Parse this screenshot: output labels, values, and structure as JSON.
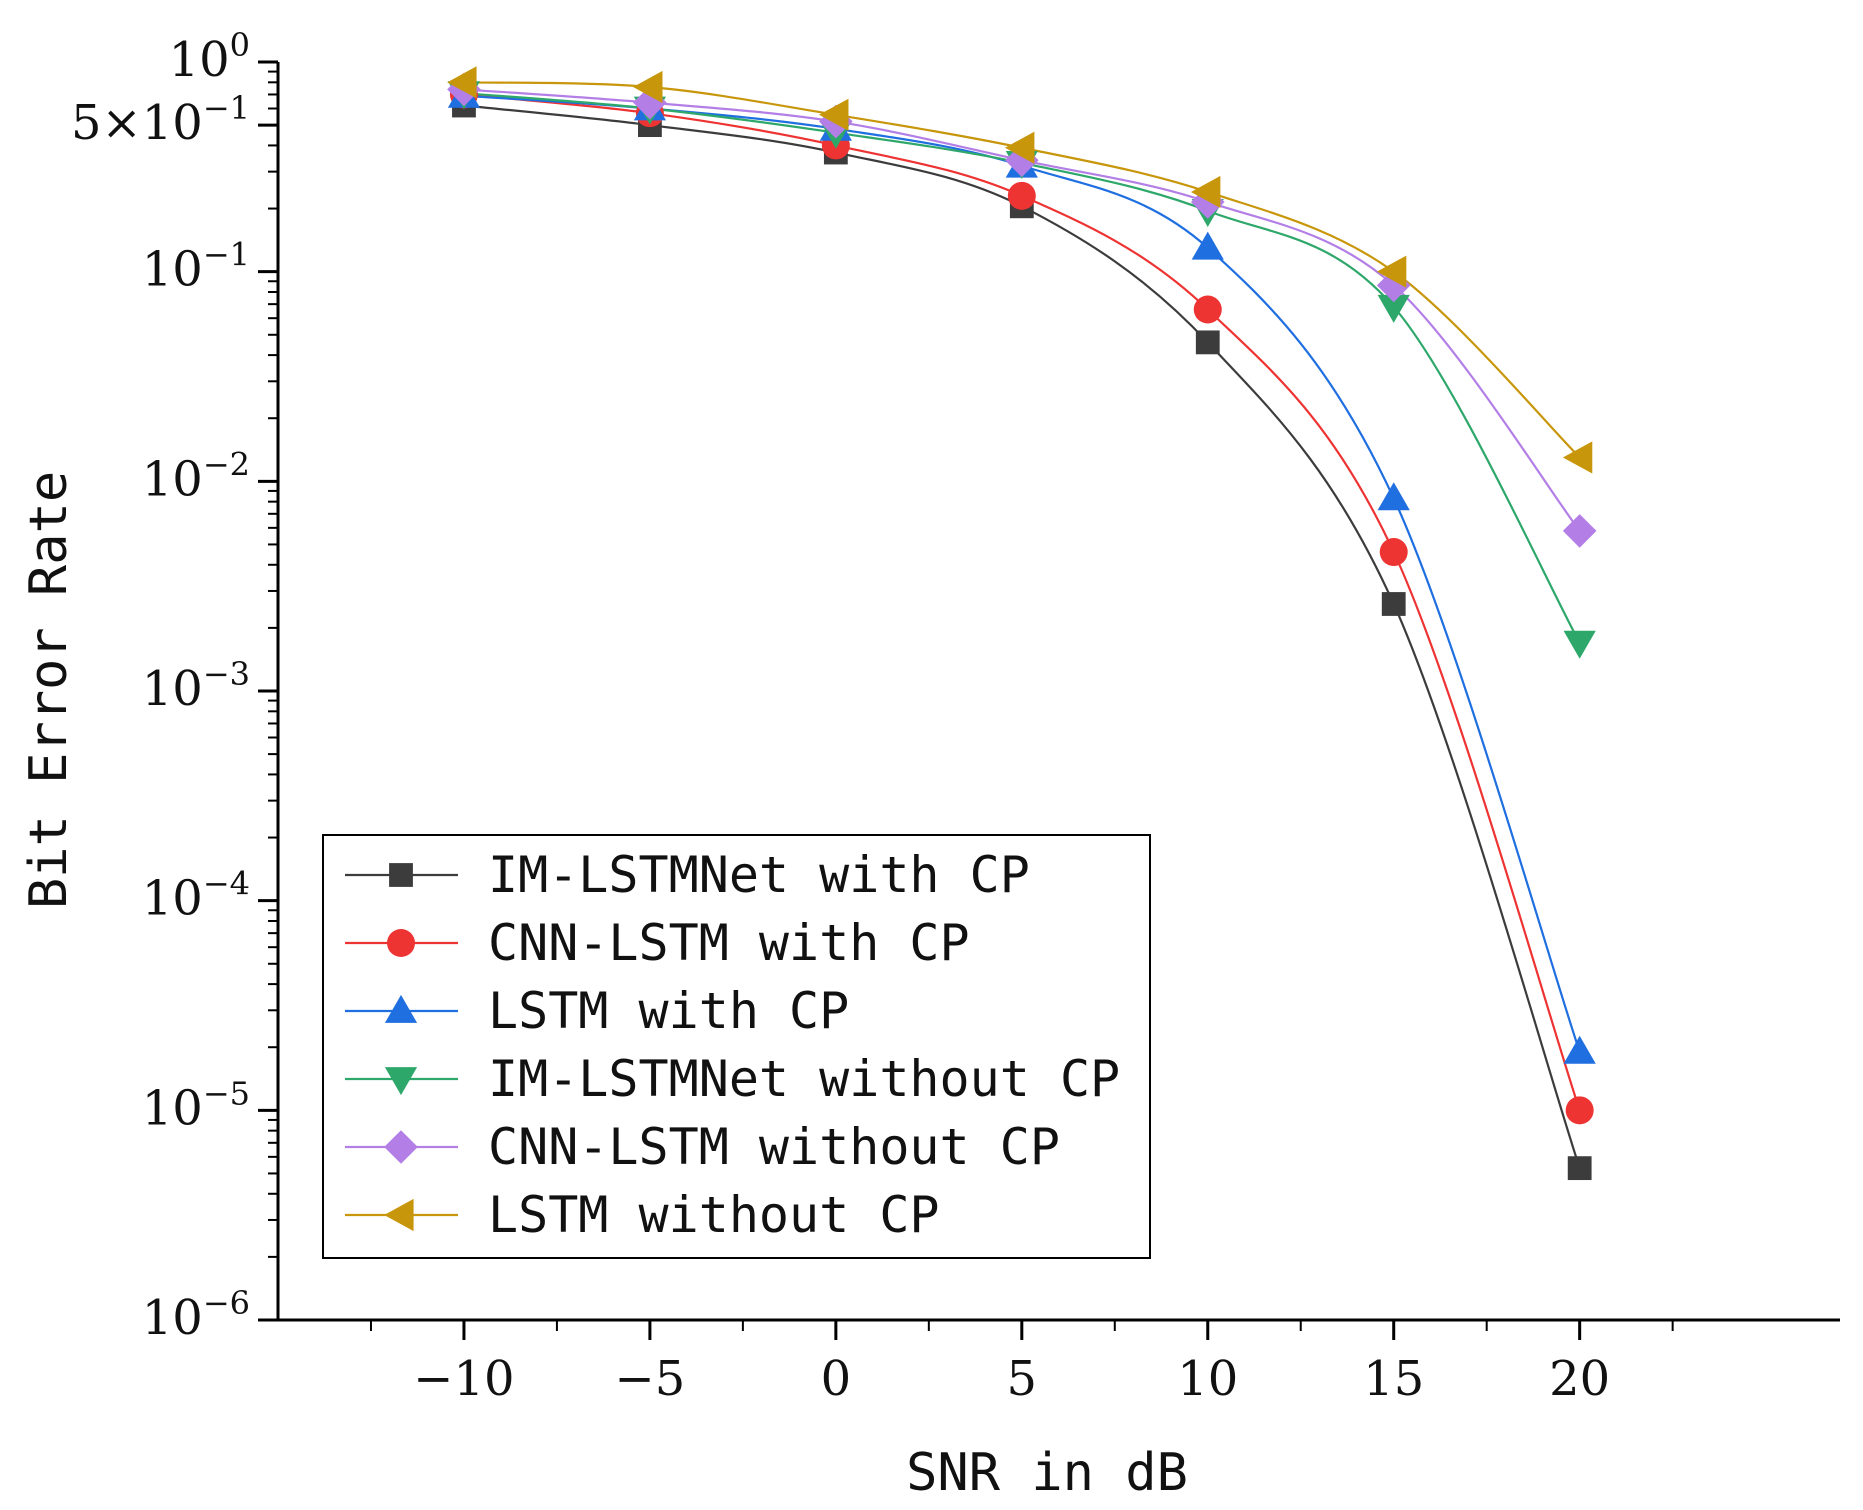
{
  "chart_data": {
    "type": "line",
    "title": "",
    "xlabel": "SNR in dB",
    "ylabel": "Bit Error Rate",
    "yscale": "log",
    "xlim": [
      -15,
      27
    ],
    "ylim": [
      1e-06,
      1
    ],
    "x_ticks": [
      -10,
      -5,
      0,
      5,
      10,
      15,
      20
    ],
    "x_tick_labels": [
      "−10",
      "−5",
      "0",
      "5",
      "10",
      "15",
      "20"
    ],
    "y_ticks": [
      {
        "value": 1,
        "base": "10",
        "exp": "0"
      },
      {
        "value": 0.5,
        "base": "5×10",
        "exp": "−1"
      },
      {
        "value": 0.1,
        "base": "10",
        "exp": "−1"
      },
      {
        "value": 0.01,
        "base": "10",
        "exp": "−2"
      },
      {
        "value": 0.001,
        "base": "10",
        "exp": "−3"
      },
      {
        "value": 0.0001,
        "base": "10",
        "exp": "−4"
      },
      {
        "value": 1e-05,
        "base": "10",
        "exp": "−5"
      },
      {
        "value": 1e-06,
        "base": "10",
        "exp": "−6"
      }
    ],
    "x": [
      -10,
      -5,
      0,
      5,
      10,
      15,
      20
    ],
    "legend_position": "bottom-left",
    "series": [
      {
        "name": "IM-LSTMNet with CP",
        "color": "#3c3c3c",
        "marker": "square",
        "values": [
          0.62,
          0.5,
          0.37,
          0.205,
          0.046,
          0.0026,
          5.3e-06
        ]
      },
      {
        "name": "CNN-LSTM with CP",
        "color": "#ee3333",
        "marker": "circle",
        "values": [
          0.7,
          0.57,
          0.4,
          0.23,
          0.066,
          0.0046,
          1e-05
        ]
      },
      {
        "name": "LSTM with CP",
        "color": "#1f6fe0",
        "marker": "triangle-up",
        "values": [
          0.69,
          0.6,
          0.48,
          0.32,
          0.13,
          0.0083,
          1.9e-05
        ]
      },
      {
        "name": "IM-LSTMNet without CP",
        "color": "#2ea86a",
        "marker": "triangle-down",
        "values": [
          0.71,
          0.6,
          0.46,
          0.33,
          0.195,
          0.068,
          0.0017
        ]
      },
      {
        "name": "CNN-LSTM without CP",
        "color": "#b37fe6",
        "marker": "diamond",
        "values": [
          0.74,
          0.64,
          0.52,
          0.34,
          0.215,
          0.086,
          0.0058
        ]
      },
      {
        "name": "LSTM without CP",
        "color": "#c8960a",
        "marker": "triangle-left",
        "values": [
          0.8,
          0.76,
          0.56,
          0.39,
          0.24,
          0.1,
          0.013
        ]
      }
    ]
  }
}
